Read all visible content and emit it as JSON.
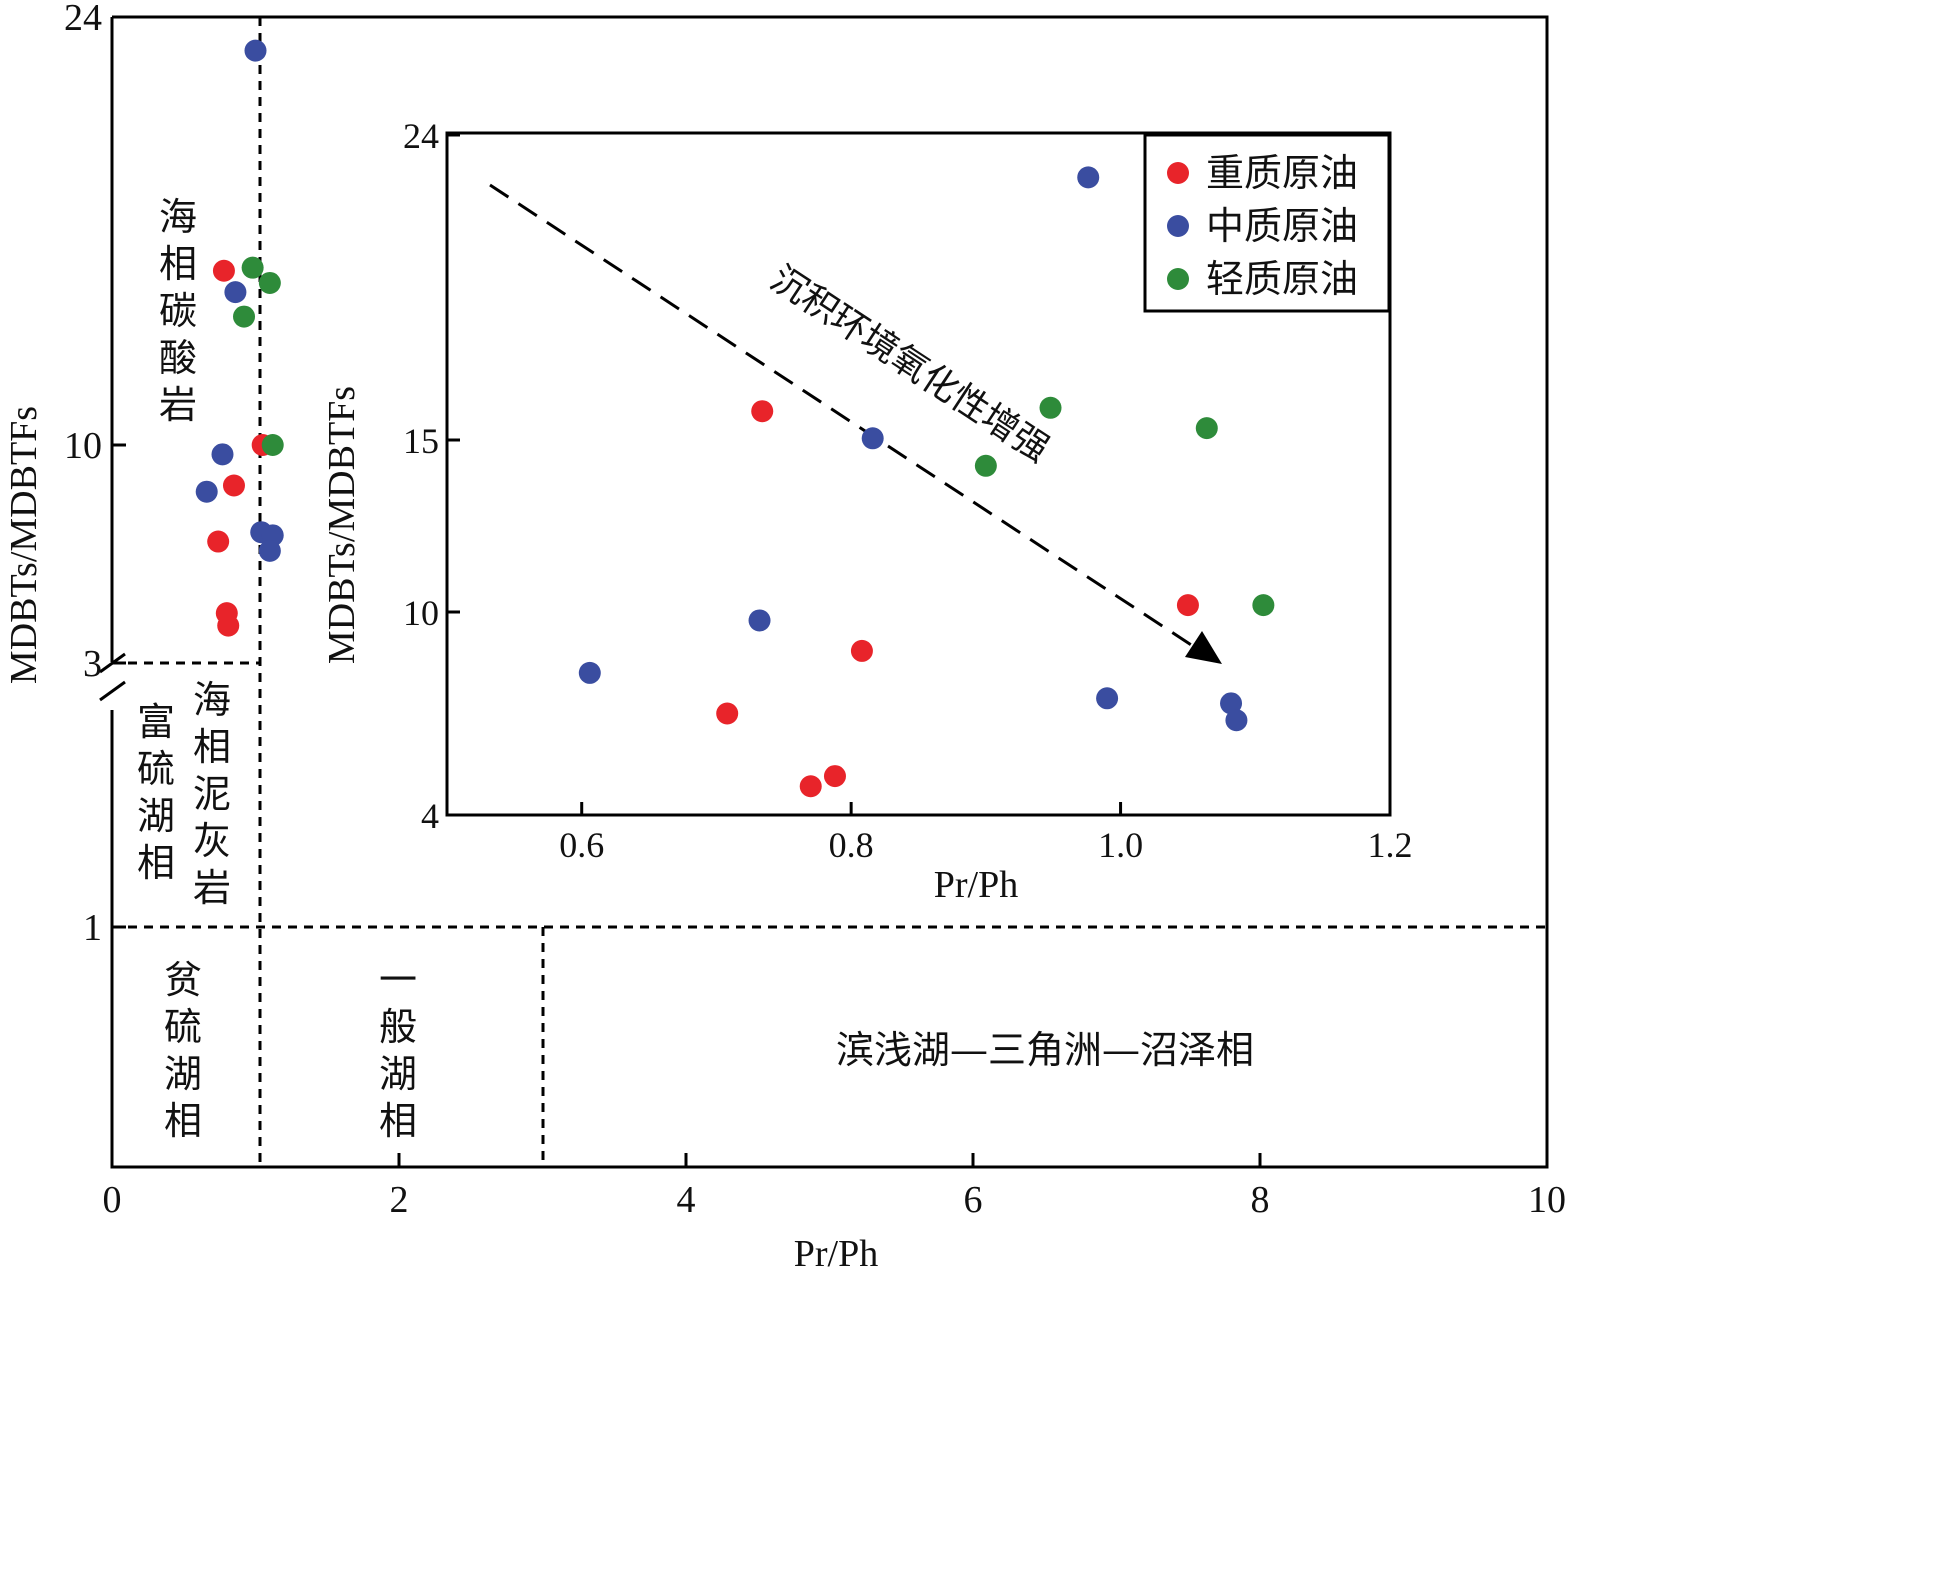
{
  "chart_data": [
    {
      "type": "scatter",
      "xlabel": "Pr/Ph",
      "ylabel": "MDBTs/MDBTFs",
      "xlim": [
        0,
        10
      ],
      "x_ticks": [
        "0",
        "2",
        "4",
        "6",
        "8",
        "10"
      ],
      "y_ticks": [
        "1",
        "3",
        "10",
        "24"
      ],
      "y_scale": "broken: 0-1, 1-3, 3-24 (split at 10)",
      "grid": false,
      "zones": [
        {
          "label": "海相碳酸岩",
          "x_range": [
            0,
            1
          ],
          "y_range": [
            3,
            24
          ]
        },
        {
          "label": "富硫湖相",
          "x_range": [
            0,
            1
          ],
          "y_range": [
            1,
            3
          ]
        },
        {
          "label": "海相泥灰岩",
          "x_range": [
            0,
            1
          ],
          "y_range": [
            1,
            3
          ]
        },
        {
          "label": "贫硫湖相",
          "x_range": [
            0,
            1
          ],
          "y_range": [
            0,
            1
          ]
        },
        {
          "label": "一般湖相",
          "x_range": [
            1,
            3
          ],
          "y_range": [
            0,
            1
          ]
        },
        {
          "label": "滨浅湖—三角洲—沼泽相",
          "x_range": [
            3,
            10
          ],
          "y_range": [
            0,
            1
          ]
        }
      ],
      "series": [
        {
          "color": "#e8242a",
          "points": [
            [
              0.78,
              15.7
            ],
            [
              1.05,
              10.0
            ],
            [
              0.85,
              8.7
            ],
            [
              0.74,
              6.9
            ],
            [
              0.8,
              4.6
            ],
            [
              0.81,
              4.2
            ]
          ]
        },
        {
          "color": "#3a4da0",
          "points": [
            [
              1.0,
              22.9
            ],
            [
              0.86,
              15.0
            ],
            [
              0.77,
              9.7
            ],
            [
              0.66,
              8.5
            ],
            [
              1.04,
              7.2
            ],
            [
              1.12,
              7.1
            ],
            [
              1.1,
              6.6
            ]
          ]
        },
        {
          "color": "#2e8b3a",
          "points": [
            [
              0.98,
              15.8
            ],
            [
              1.1,
              15.3
            ],
            [
              0.92,
              14.2
            ],
            [
              1.12,
              10.0
            ]
          ]
        }
      ]
    },
    {
      "type": "scatter",
      "xlabel": "Pr/Ph",
      "ylabel": "MDBTs/MDBTFs",
      "xlim": [
        0.5,
        1.2
      ],
      "ylim": [
        4,
        24
      ],
      "x_ticks": [
        "0.6",
        "0.8",
        "1.0",
        "1.2"
      ],
      "y_ticks": [
        "4",
        "10",
        "15",
        "24"
      ],
      "legend_position": "top-right",
      "grid": false,
      "annotation": "沉积环境氧化性增强",
      "series": [
        {
          "name": "重质原油",
          "color": "#e8242a",
          "points": [
            [
              0.734,
              15.85
            ],
            [
              1.05,
              10.2
            ],
            [
              0.808,
              8.85
            ],
            [
              0.708,
              7.0
            ],
            [
              0.788,
              5.15
            ],
            [
              0.77,
              4.85
            ]
          ]
        },
        {
          "name": "中质原油",
          "color": "#3a4da0",
          "points": [
            [
              0.976,
              22.75
            ],
            [
              0.816,
              15.05
            ],
            [
              0.732,
              9.75
            ],
            [
              0.606,
              8.2
            ],
            [
              0.99,
              7.45
            ],
            [
              1.082,
              7.3
            ],
            [
              1.086,
              6.8
            ]
          ]
        },
        {
          "name": "轻质原油",
          "color": "#2e8b3a",
          "points": [
            [
              0.948,
              15.95
            ],
            [
              1.064,
              15.35
            ],
            [
              0.9,
              14.25
            ],
            [
              1.106,
              10.2
            ]
          ]
        }
      ]
    }
  ]
}
